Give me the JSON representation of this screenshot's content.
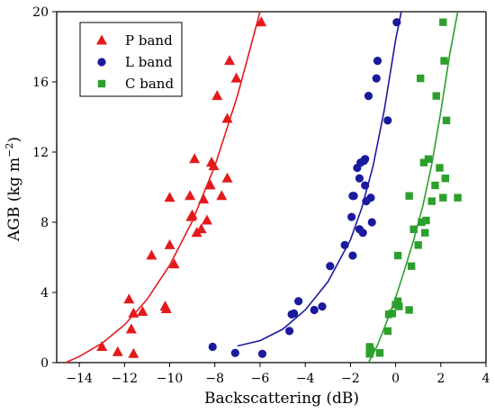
{
  "chart_data": {
    "type": "scatter",
    "xlabel": "Backscattering (dB)",
    "ylabel_main": "AGB (kg m",
    "ylabel_sup": "−2",
    "ylabel_close": ")",
    "xlim": [
      -15,
      4
    ],
    "ylim": [
      0,
      20
    ],
    "x_ticks": [
      -14,
      -12,
      -10,
      -8,
      -6,
      -4,
      -2,
      0,
      2,
      4
    ],
    "x_tick_labels": [
      "−14",
      "−12",
      "−10",
      "−8",
      "−6",
      "−4",
      "−2",
      "0",
      "2",
      "4"
    ],
    "y_ticks": [
      0,
      4,
      8,
      12,
      16,
      20
    ],
    "y_tick_labels": [
      "0",
      "4",
      "8",
      "12",
      "16",
      "20"
    ],
    "legend_position": "top-left",
    "series": [
      {
        "name": "P band",
        "marker": "triangle",
        "color": "#e31a1c",
        "points": [
          [
            -13.0,
            0.9
          ],
          [
            -12.3,
            0.6
          ],
          [
            -11.6,
            0.5
          ],
          [
            -11.8,
            3.6
          ],
          [
            -11.6,
            2.8
          ],
          [
            -11.7,
            1.9
          ],
          [
            -11.2,
            2.9
          ],
          [
            -10.2,
            3.2
          ],
          [
            -10.15,
            3.05
          ],
          [
            -10.8,
            6.1
          ],
          [
            -9.8,
            5.6
          ],
          [
            -10.0,
            6.7
          ],
          [
            -10.0,
            9.4
          ],
          [
            -9.1,
            9.5
          ],
          [
            -9.05,
            8.3
          ],
          [
            -9.0,
            8.4
          ],
          [
            -8.8,
            7.4
          ],
          [
            -8.5,
            9.3
          ],
          [
            -8.6,
            7.6
          ],
          [
            -8.35,
            8.1
          ],
          [
            -8.9,
            11.6
          ],
          [
            -8.2,
            10.1
          ],
          [
            -8.15,
            11.4
          ],
          [
            -8.05,
            11.2
          ],
          [
            -7.7,
            9.5
          ],
          [
            -7.9,
            15.2
          ],
          [
            -7.45,
            10.5
          ],
          [
            -7.45,
            13.9
          ],
          [
            -7.35,
            17.2
          ],
          [
            -7.05,
            16.2
          ],
          [
            -5.95,
            19.4
          ]
        ],
        "fit": [
          [
            -14.6,
            0.0
          ],
          [
            -14.0,
            0.35
          ],
          [
            -13.0,
            1.1
          ],
          [
            -12.0,
            2.15
          ],
          [
            -11.0,
            3.6
          ],
          [
            -10.0,
            5.55
          ],
          [
            -9.0,
            8.05
          ],
          [
            -8.0,
            11.2
          ],
          [
            -7.0,
            15.2
          ],
          [
            -6.5,
            17.6
          ],
          [
            -6.0,
            20.0
          ]
        ]
      },
      {
        "name": "L band",
        "marker": "circle",
        "color": "#1a1a9e",
        "points": [
          [
            -8.1,
            0.9
          ],
          [
            -7.1,
            0.55
          ],
          [
            -5.9,
            0.5
          ],
          [
            -4.7,
            1.8
          ],
          [
            -4.5,
            2.8
          ],
          [
            -4.6,
            2.75
          ],
          [
            -4.3,
            3.5
          ],
          [
            -3.6,
            3.0
          ],
          [
            -3.25,
            3.2
          ],
          [
            -2.9,
            5.5
          ],
          [
            -2.25,
            6.7
          ],
          [
            -1.9,
            6.1
          ],
          [
            -1.95,
            8.3
          ],
          [
            -1.9,
            9.5
          ],
          [
            -1.85,
            9.5
          ],
          [
            -1.6,
            7.6
          ],
          [
            -1.55,
            11.4
          ],
          [
            -1.4,
            11.5
          ],
          [
            -1.35,
            11.6
          ],
          [
            -1.7,
            11.1
          ],
          [
            -1.6,
            10.5
          ],
          [
            -1.35,
            10.1
          ],
          [
            -1.45,
            7.4
          ],
          [
            -1.3,
            9.2
          ],
          [
            -1.2,
            15.2
          ],
          [
            -1.1,
            9.4
          ],
          [
            -1.05,
            8.0
          ],
          [
            -0.85,
            16.2
          ],
          [
            -0.8,
            17.2
          ],
          [
            -0.35,
            13.8
          ],
          [
            0.05,
            19.4
          ]
        ],
        "fit": [
          [
            -7.0,
            0.95
          ],
          [
            -6.0,
            1.25
          ],
          [
            -5.0,
            1.9
          ],
          [
            -4.0,
            3.0
          ],
          [
            -3.0,
            4.6
          ],
          [
            -2.0,
            7.0
          ],
          [
            -1.5,
            8.8
          ],
          [
            -1.0,
            11.2
          ],
          [
            -0.5,
            14.4
          ],
          [
            0.0,
            18.4
          ],
          [
            0.25,
            20.0
          ]
        ]
      },
      {
        "name": "C band",
        "marker": "square",
        "color": "#2ca02c",
        "points": [
          [
            -1.15,
            0.9
          ],
          [
            -1.15,
            0.5
          ],
          [
            -1.1,
            0.7
          ],
          [
            -0.7,
            0.55
          ],
          [
            -0.35,
            1.8
          ],
          [
            -0.3,
            2.75
          ],
          [
            -0.15,
            2.8
          ],
          [
            0.0,
            3.3
          ],
          [
            0.1,
            3.5
          ],
          [
            0.15,
            3.2
          ],
          [
            0.6,
            3.0
          ],
          [
            0.1,
            6.1
          ],
          [
            0.7,
            5.5
          ],
          [
            0.6,
            9.5
          ],
          [
            0.8,
            7.6
          ],
          [
            1.0,
            6.7
          ],
          [
            1.15,
            8.0
          ],
          [
            1.3,
            7.4
          ],
          [
            1.25,
            11.4
          ],
          [
            1.35,
            8.1
          ],
          [
            1.45,
            11.6
          ],
          [
            1.6,
            9.2
          ],
          [
            1.75,
            10.1
          ],
          [
            1.8,
            15.2
          ],
          [
            1.95,
            11.1
          ],
          [
            2.1,
            9.4
          ],
          [
            2.15,
            17.2
          ],
          [
            2.2,
            10.5
          ],
          [
            2.25,
            13.8
          ],
          [
            2.1,
            19.4
          ],
          [
            2.75,
            9.4
          ],
          [
            1.1,
            16.2
          ]
        ],
        "fit": [
          [
            -1.2,
            0.0
          ],
          [
            -0.8,
            1.0
          ],
          [
            -0.4,
            2.3
          ],
          [
            0.0,
            3.7
          ],
          [
            0.4,
            5.3
          ],
          [
            0.8,
            7.0
          ],
          [
            1.2,
            8.9
          ],
          [
            1.6,
            11.3
          ],
          [
            2.0,
            14.3
          ],
          [
            2.4,
            17.6
          ],
          [
            2.75,
            20.0
          ]
        ]
      }
    ]
  }
}
